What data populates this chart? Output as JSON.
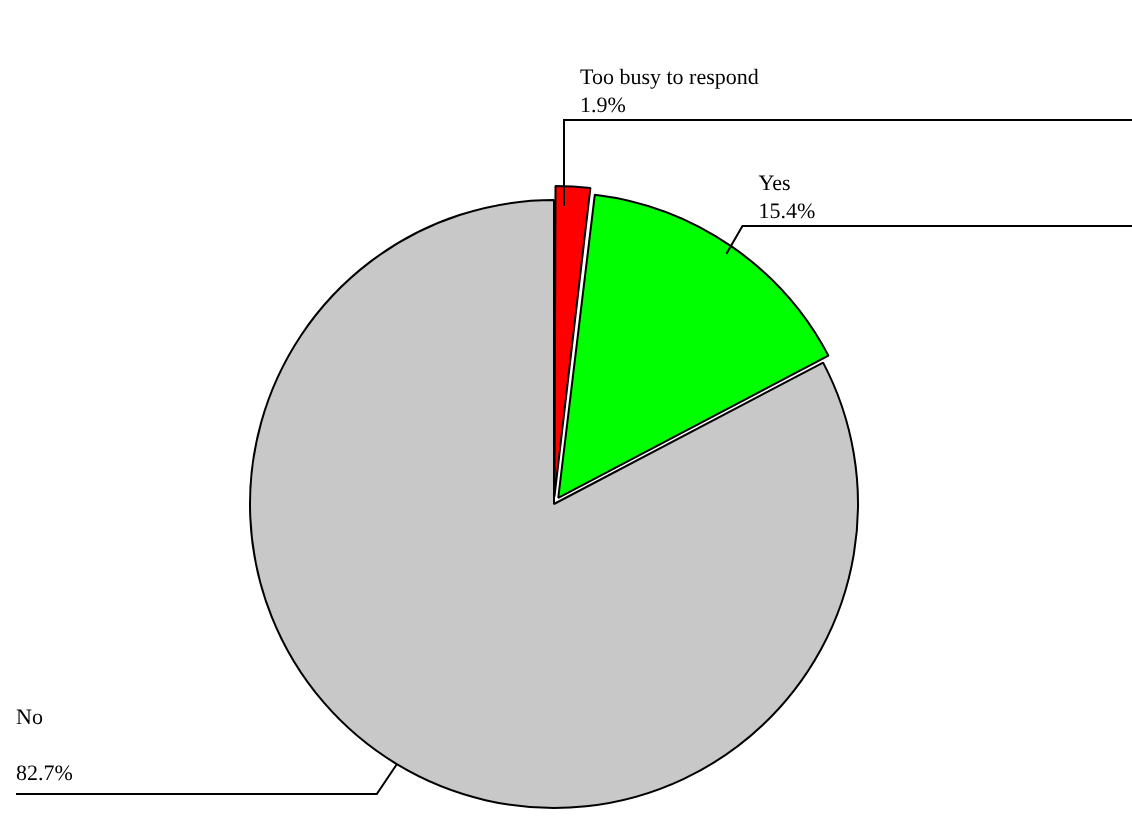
{
  "chart_data": {
    "type": "pie",
    "categories": [
      "Too busy to respond",
      "Yes",
      "No"
    ],
    "values": [
      1.9,
      15.4,
      82.7
    ],
    "value_labels": [
      "1.9%",
      "15.4%",
      "82.7%"
    ],
    "colors": [
      "#ff0000",
      "#00ff00",
      "#c8c8c8"
    ],
    "legend": false
  }
}
